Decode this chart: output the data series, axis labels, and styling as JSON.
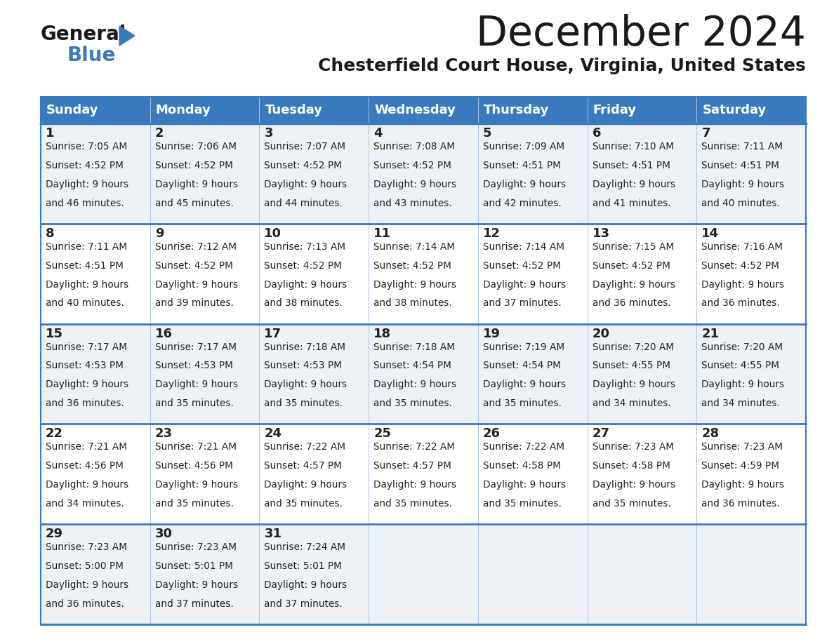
{
  "title": "December 2024",
  "subtitle": "Chesterfield Court House, Virginia, United States",
  "header_color": "#3a7abf",
  "header_text_color": "#ffffff",
  "cell_bg_even": "#edf2f7",
  "cell_bg_odd": "#ffffff",
  "border_color": "#3a7abf",
  "divider_color": "#b0c4de",
  "text_color": "#222222",
  "days_of_week": [
    "Sunday",
    "Monday",
    "Tuesday",
    "Wednesday",
    "Thursday",
    "Friday",
    "Saturday"
  ],
  "calendar": [
    [
      {
        "day": "1",
        "sunrise": "7:05 AM",
        "sunset": "4:52 PM",
        "daylight": "9 hours",
        "daylight2": "and 46 minutes."
      },
      {
        "day": "2",
        "sunrise": "7:06 AM",
        "sunset": "4:52 PM",
        "daylight": "9 hours",
        "daylight2": "and 45 minutes."
      },
      {
        "day": "3",
        "sunrise": "7:07 AM",
        "sunset": "4:52 PM",
        "daylight": "9 hours",
        "daylight2": "and 44 minutes."
      },
      {
        "day": "4",
        "sunrise": "7:08 AM",
        "sunset": "4:52 PM",
        "daylight": "9 hours",
        "daylight2": "and 43 minutes."
      },
      {
        "day": "5",
        "sunrise": "7:09 AM",
        "sunset": "4:51 PM",
        "daylight": "9 hours",
        "daylight2": "and 42 minutes."
      },
      {
        "day": "6",
        "sunrise": "7:10 AM",
        "sunset": "4:51 PM",
        "daylight": "9 hours",
        "daylight2": "and 41 minutes."
      },
      {
        "day": "7",
        "sunrise": "7:11 AM",
        "sunset": "4:51 PM",
        "daylight": "9 hours",
        "daylight2": "and 40 minutes."
      }
    ],
    [
      {
        "day": "8",
        "sunrise": "7:11 AM",
        "sunset": "4:51 PM",
        "daylight": "9 hours",
        "daylight2": "and 40 minutes."
      },
      {
        "day": "9",
        "sunrise": "7:12 AM",
        "sunset": "4:52 PM",
        "daylight": "9 hours",
        "daylight2": "and 39 minutes."
      },
      {
        "day": "10",
        "sunrise": "7:13 AM",
        "sunset": "4:52 PM",
        "daylight": "9 hours",
        "daylight2": "and 38 minutes."
      },
      {
        "day": "11",
        "sunrise": "7:14 AM",
        "sunset": "4:52 PM",
        "daylight": "9 hours",
        "daylight2": "and 38 minutes."
      },
      {
        "day": "12",
        "sunrise": "7:14 AM",
        "sunset": "4:52 PM",
        "daylight": "9 hours",
        "daylight2": "and 37 minutes."
      },
      {
        "day": "13",
        "sunrise": "7:15 AM",
        "sunset": "4:52 PM",
        "daylight": "9 hours",
        "daylight2": "and 36 minutes."
      },
      {
        "day": "14",
        "sunrise": "7:16 AM",
        "sunset": "4:52 PM",
        "daylight": "9 hours",
        "daylight2": "and 36 minutes."
      }
    ],
    [
      {
        "day": "15",
        "sunrise": "7:17 AM",
        "sunset": "4:53 PM",
        "daylight": "9 hours",
        "daylight2": "and 36 minutes."
      },
      {
        "day": "16",
        "sunrise": "7:17 AM",
        "sunset": "4:53 PM",
        "daylight": "9 hours",
        "daylight2": "and 35 minutes."
      },
      {
        "day": "17",
        "sunrise": "7:18 AM",
        "sunset": "4:53 PM",
        "daylight": "9 hours",
        "daylight2": "and 35 minutes."
      },
      {
        "day": "18",
        "sunrise": "7:18 AM",
        "sunset": "4:54 PM",
        "daylight": "9 hours",
        "daylight2": "and 35 minutes."
      },
      {
        "day": "19",
        "sunrise": "7:19 AM",
        "sunset": "4:54 PM",
        "daylight": "9 hours",
        "daylight2": "and 35 minutes."
      },
      {
        "day": "20",
        "sunrise": "7:20 AM",
        "sunset": "4:55 PM",
        "daylight": "9 hours",
        "daylight2": "and 34 minutes."
      },
      {
        "day": "21",
        "sunrise": "7:20 AM",
        "sunset": "4:55 PM",
        "daylight": "9 hours",
        "daylight2": "and 34 minutes."
      }
    ],
    [
      {
        "day": "22",
        "sunrise": "7:21 AM",
        "sunset": "4:56 PM",
        "daylight": "9 hours",
        "daylight2": "and 34 minutes."
      },
      {
        "day": "23",
        "sunrise": "7:21 AM",
        "sunset": "4:56 PM",
        "daylight": "9 hours",
        "daylight2": "and 35 minutes."
      },
      {
        "day": "24",
        "sunrise": "7:22 AM",
        "sunset": "4:57 PM",
        "daylight": "9 hours",
        "daylight2": "and 35 minutes."
      },
      {
        "day": "25",
        "sunrise": "7:22 AM",
        "sunset": "4:57 PM",
        "daylight": "9 hours",
        "daylight2": "and 35 minutes."
      },
      {
        "day": "26",
        "sunrise": "7:22 AM",
        "sunset": "4:58 PM",
        "daylight": "9 hours",
        "daylight2": "and 35 minutes."
      },
      {
        "day": "27",
        "sunrise": "7:23 AM",
        "sunset": "4:58 PM",
        "daylight": "9 hours",
        "daylight2": "and 35 minutes."
      },
      {
        "day": "28",
        "sunrise": "7:23 AM",
        "sunset": "4:59 PM",
        "daylight": "9 hours",
        "daylight2": "and 36 minutes."
      }
    ],
    [
      {
        "day": "29",
        "sunrise": "7:23 AM",
        "sunset": "5:00 PM",
        "daylight": "9 hours",
        "daylight2": "and 36 minutes."
      },
      {
        "day": "30",
        "sunrise": "7:23 AM",
        "sunset": "5:01 PM",
        "daylight": "9 hours",
        "daylight2": "and 37 minutes."
      },
      {
        "day": "31",
        "sunrise": "7:24 AM",
        "sunset": "5:01 PM",
        "daylight": "9 hours",
        "daylight2": "and 37 minutes."
      },
      null,
      null,
      null,
      null
    ]
  ],
  "fig_width": 11.88,
  "fig_height": 9.18,
  "dpi": 100
}
